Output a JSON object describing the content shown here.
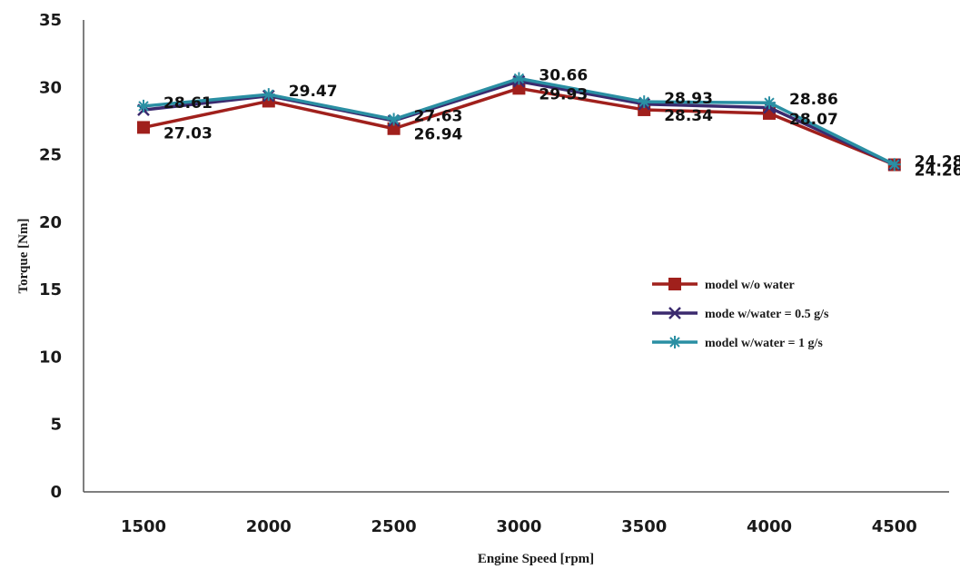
{
  "chart_data": {
    "type": "line",
    "title": "",
    "xlabel": "Engine Speed [rpm]",
    "ylabel": "Torque [Nm]",
    "categories": [
      "1500",
      "2000",
      "2500",
      "3000",
      "3500",
      "4000",
      "4500"
    ],
    "yticks": [
      "0",
      "5",
      "10",
      "15",
      "20",
      "25",
      "30",
      "35"
    ],
    "ylim": [
      0,
      35
    ],
    "grid": false,
    "legend_position": "right",
    "series": [
      {
        "name": "model w/o water",
        "color": "#a0201c",
        "marker": "square",
        "values": [
          27.03,
          28.98,
          26.94,
          29.93,
          28.34,
          28.07,
          24.26
        ],
        "labels": [
          "27.03",
          "",
          "26.94",
          "29.93",
          "28.34",
          "28.07",
          "24.26"
        ]
      },
      {
        "name": "mode w/water = 0.5 g/s",
        "color": "#3b2a6e",
        "marker": "x",
        "values": [
          28.33,
          29.37,
          27.53,
          30.45,
          28.76,
          28.5,
          24.27
        ],
        "labels": [
          "",
          "",
          "",
          "",
          "",
          "",
          ""
        ]
      },
      {
        "name": "model w/water = 1 g/s",
        "color": "#2a8fa3",
        "marker": "star",
        "values": [
          28.61,
          29.47,
          27.63,
          30.66,
          28.93,
          28.86,
          24.28
        ],
        "labels": [
          "28.61",
          "29.47",
          "27.63",
          "30.66",
          "28.93",
          "28.86",
          "24.28"
        ]
      }
    ]
  }
}
